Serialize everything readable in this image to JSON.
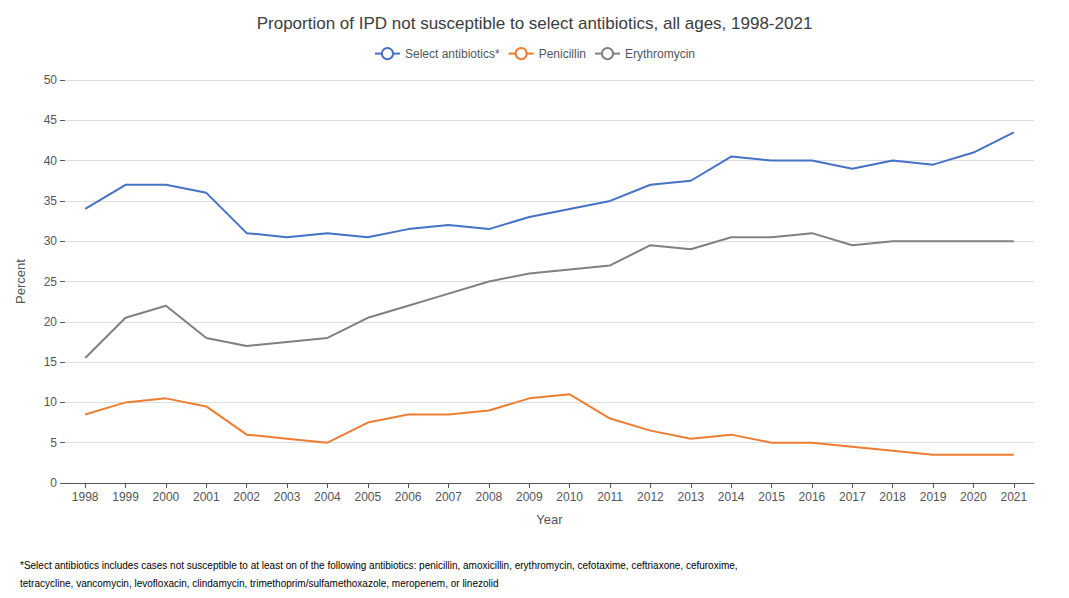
{
  "chart_data": {
    "type": "line",
    "title": "Proportion of IPD not susceptible to select antibiotics, all ages, 1998-2021",
    "xlabel": "Year",
    "ylabel": "Percent",
    "x": [
      1998,
      1999,
      2000,
      2001,
      2002,
      2003,
      2004,
      2005,
      2006,
      2007,
      2008,
      2009,
      2010,
      2011,
      2012,
      2013,
      2014,
      2015,
      2016,
      2017,
      2018,
      2019,
      2020,
      2021
    ],
    "series": [
      {
        "name": "Select antibiotics*",
        "color": "#4472C4",
        "values": [
          34,
          37,
          37,
          36,
          31,
          30.5,
          31,
          30.5,
          31.5,
          32,
          31.5,
          33,
          34,
          35,
          37,
          37.5,
          40.5,
          40,
          40,
          39,
          40,
          39.5,
          41,
          43.5
        ]
      },
      {
        "name": "Penicillin",
        "color": "#ED7D31",
        "values": [
          8.5,
          10,
          10.5,
          9.5,
          6,
          5.5,
          5,
          7.5,
          8.5,
          8.5,
          9,
          10.5,
          11,
          8,
          6.5,
          5.5,
          6,
          5,
          5,
          4.5,
          4,
          3.5,
          3.5,
          3.5
        ]
      },
      {
        "name": "Erythromycin",
        "color": "#808080",
        "values": [
          15.5,
          20.5,
          22,
          18,
          17,
          17.5,
          18,
          20.5,
          22,
          23.5,
          25,
          26,
          26.5,
          27,
          29.5,
          29,
          30.5,
          30.5,
          31,
          29.5,
          30,
          30,
          30,
          30
        ]
      }
    ],
    "xlim": [
      1997.5,
      2021.5
    ],
    "xticks": [
      1998,
      1999,
      2000,
      2001,
      2002,
      2003,
      2004,
      2005,
      2006,
      2007,
      2008,
      2009,
      2010,
      2011,
      2012,
      2013,
      2014,
      2015,
      2016,
      2017,
      2018,
      2019,
      2020,
      2021
    ],
    "ylim": [
      0,
      50
    ],
    "yticks": [
      0,
      5,
      10,
      15,
      20,
      25,
      30,
      35,
      40,
      45,
      50
    ],
    "grid": true,
    "legend": "top",
    "annotations": [
      "*Select antibiotics includes cases not susceptible to at least on of the following antibiotics: penicillin, amoxicillin, erythromycin, cefotaxime, ceftriaxone, cefuroxime,",
      "tetracycline, vancomycin, levofloxacin, clindamycin, trimethoprim/sulfamethoxazole, meropenem, or linezolid"
    ]
  }
}
